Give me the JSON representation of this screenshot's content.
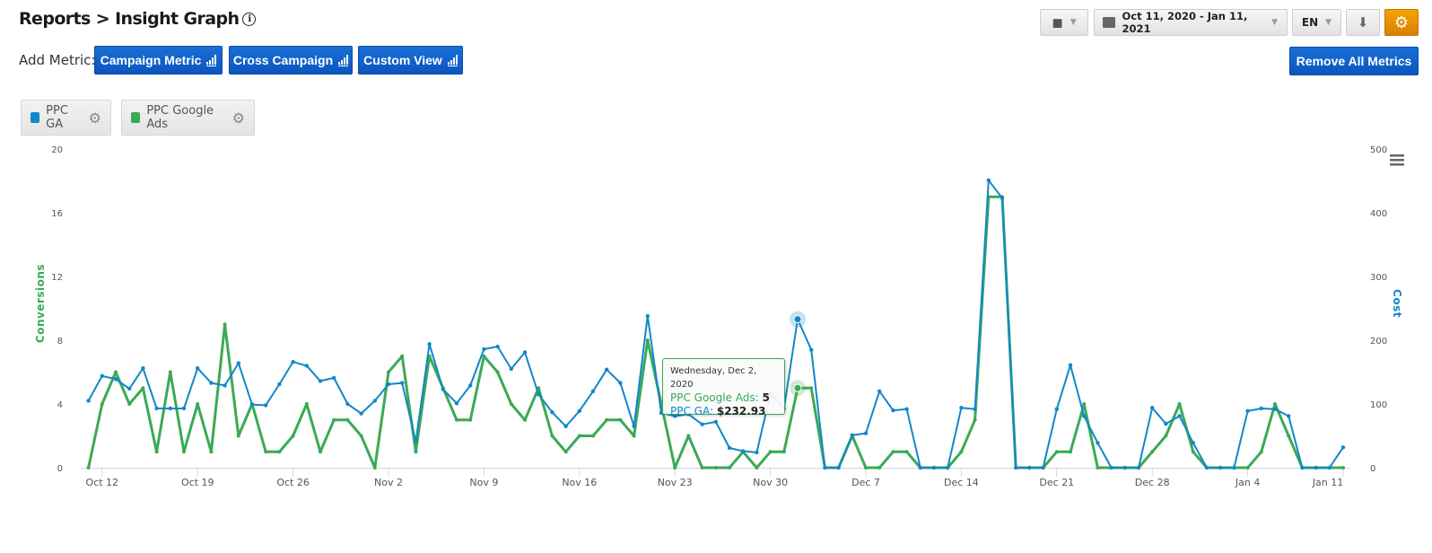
{
  "header": {
    "title": "Reports > Insight Graph",
    "info_icon": "i",
    "add_metric_label": "Add Metric:",
    "buttons": {
      "campaign_metric": "Campaign Metric",
      "cross_campaign": "Cross Campaign",
      "custom_view": "Custom View",
      "remove_all": "Remove All Metrics"
    },
    "date_range": "Oct 11, 2020 - Jan 11, 2021",
    "language": "EN"
  },
  "legend": [
    {
      "label": "PPC GA",
      "color": "#1287c9"
    },
    {
      "label": "PPC Google Ads",
      "color": "#3aaa55"
    }
  ],
  "tooltip": {
    "date": "Wednesday, Dec 2, 2020",
    "line1_label": "PPC Google Ads:",
    "line1_value": "5",
    "line2_label": "PPC GA:",
    "line2_value": "$232.93",
    "index": 52
  },
  "chart_data": {
    "type": "line",
    "x_start": "2020-10-11",
    "x_end": "2021-01-11",
    "x_ticks": [
      "Oct 12",
      "Oct 19",
      "Oct 26",
      "Nov 2",
      "Nov 9",
      "Nov 16",
      "Nov 23",
      "Nov 30",
      "Dec 7",
      "Dec 14",
      "Dec 21",
      "Dec 28",
      "Jan 4",
      "Jan 11"
    ],
    "y_left": {
      "label": "Conversions",
      "ticks": [
        "0",
        "4",
        "8",
        "12",
        "16",
        "20"
      ],
      "range": [
        0,
        20
      ],
      "color": "#3aaa55"
    },
    "y_right": {
      "label": "Cost",
      "ticks": [
        "0",
        "100",
        "200",
        "300",
        "400",
        "500"
      ],
      "range": [
        0,
        500
      ],
      "color": "#1287c9"
    },
    "grid": false,
    "series": [
      {
        "name": "PPC Google Ads",
        "axis": "left",
        "color": "#3aaa55",
        "values": [
          0,
          4,
          6,
          4,
          5,
          1,
          6,
          1,
          4,
          1,
          9,
          2,
          4,
          1,
          1,
          2,
          4,
          1,
          3,
          3,
          2,
          0,
          6,
          7,
          1,
          7,
          5,
          3,
          3,
          7,
          6,
          4,
          3,
          5,
          2,
          1,
          2,
          2,
          3,
          3,
          2,
          8,
          4,
          0,
          2,
          0,
          0,
          0,
          1,
          0,
          1,
          1,
          5,
          5,
          0,
          0,
          2,
          0,
          0,
          1,
          1,
          0,
          0,
          0,
          1,
          3,
          17,
          17,
          0,
          0,
          0,
          1,
          1,
          4,
          0,
          0,
          0,
          0,
          1,
          2,
          4,
          1,
          0,
          0,
          0,
          0,
          1,
          4,
          2,
          0,
          0,
          0,
          0
        ]
      },
      {
        "name": "PPC GA",
        "axis": "right",
        "color": "#1287c9",
        "values": [
          105,
          144,
          139,
          124,
          156,
          93,
          93,
          93,
          156,
          133,
          129,
          164,
          99,
          98,
          131,
          166,
          160,
          136,
          141,
          100,
          85,
          105,
          131,
          133,
          41,
          194,
          123,
          101,
          129,
          186,
          190,
          155,
          181,
          115,
          87,
          65,
          89,
          120,
          154,
          133,
          65,
          238,
          86,
          81,
          84,
          68,
          72,
          31,
          26,
          24,
          116,
          93,
          232.93,
          185,
          0,
          0,
          51,
          54,
          120,
          90,
          92,
          0,
          0,
          0,
          94,
          92,
          451,
          423,
          0,
          0,
          0,
          92,
          161,
          81,
          39,
          0,
          0,
          0,
          94,
          69,
          81,
          39,
          0,
          0,
          0,
          89,
          93,
          92,
          81,
          0,
          0,
          0,
          32
        ]
      }
    ]
  }
}
